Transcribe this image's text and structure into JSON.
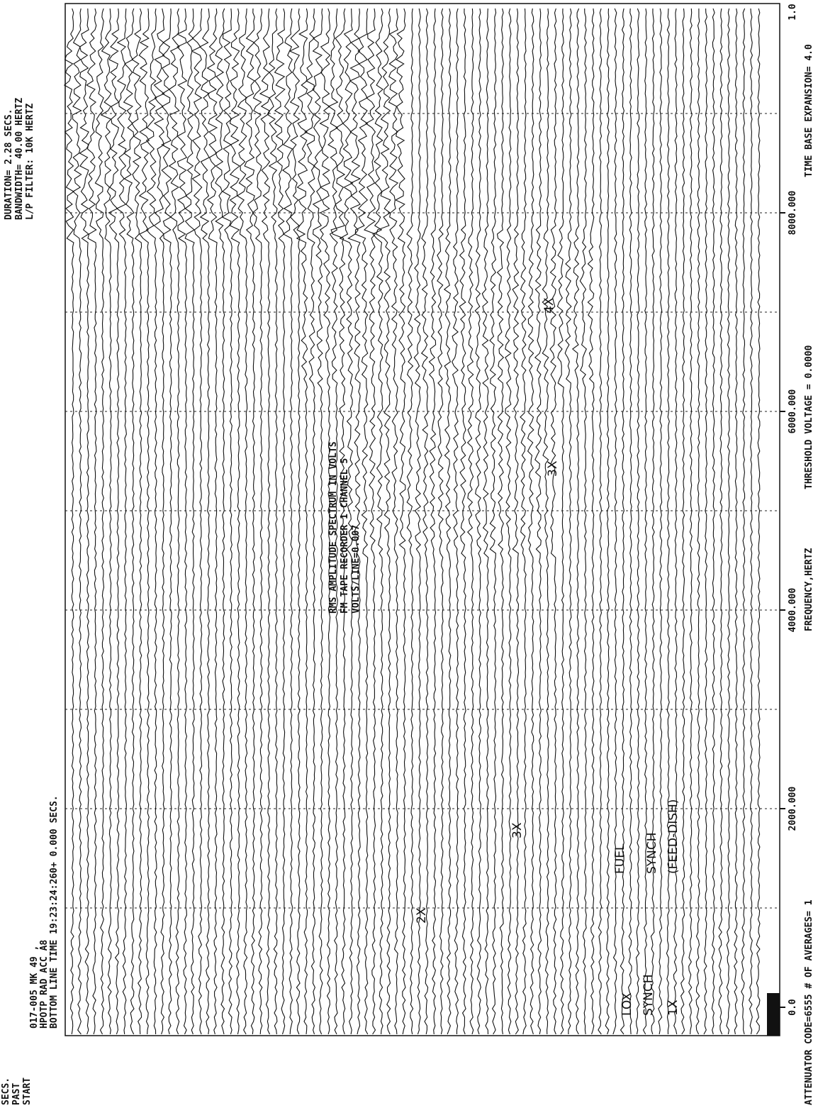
{
  "header": {
    "left": [
      "017-005 MK 49 ,",
      "HPOTP RAD ACC A8",
      "BOTTOM LINE TIME 19:23:24:260+ 0.000 SECS."
    ],
    "center": [
      "RMS AMPLITUDE SPECTRUM IN VOLTS",
      "FM TAPE RECORDER     1 CHANNEL  5",
      "VOLTS/LINE=0.007"
    ],
    "right": [
      "DURATION=    2.28 SECS.",
      "BANDWIDTH=  40.00 HERTZ",
      "L/P FILTER:  10K HERTZ"
    ]
  },
  "left_margin": [
    "SECS.",
    "PAST",
    "START"
  ],
  "frequency_axis": {
    "label": "FREQUENCY,HERTZ",
    "lim": [
      0,
      10000
    ],
    "ticks": [
      {
        "value": 0,
        "label": "0.0"
      },
      {
        "value": 2000,
        "label": "2000.000"
      },
      {
        "value": 4000,
        "label": "4000.000"
      },
      {
        "value": 6000,
        "label": "6000.000"
      },
      {
        "value": 8000,
        "label": "8000.000"
      }
    ],
    "gridlines": [
      1000,
      2000,
      3000,
      4000,
      5000,
      6000,
      7000,
      8000,
      9000
    ],
    "end_label": "1.0"
  },
  "footer": [
    "ATTENUATOR CODE=6555   # OF AVERAGES=  1",
    "THRESHOLD VOLTAGE =   0.0000",
    "TIME BASE EXPANSION=  4.0"
  ],
  "annotations": [
    "LOX",
    "SYNCH",
    "1X",
    "FUEL",
    "SYNCH",
    "(FEED-DISH)",
    "2X",
    "3X",
    "3X",
    "4X"
  ]
}
